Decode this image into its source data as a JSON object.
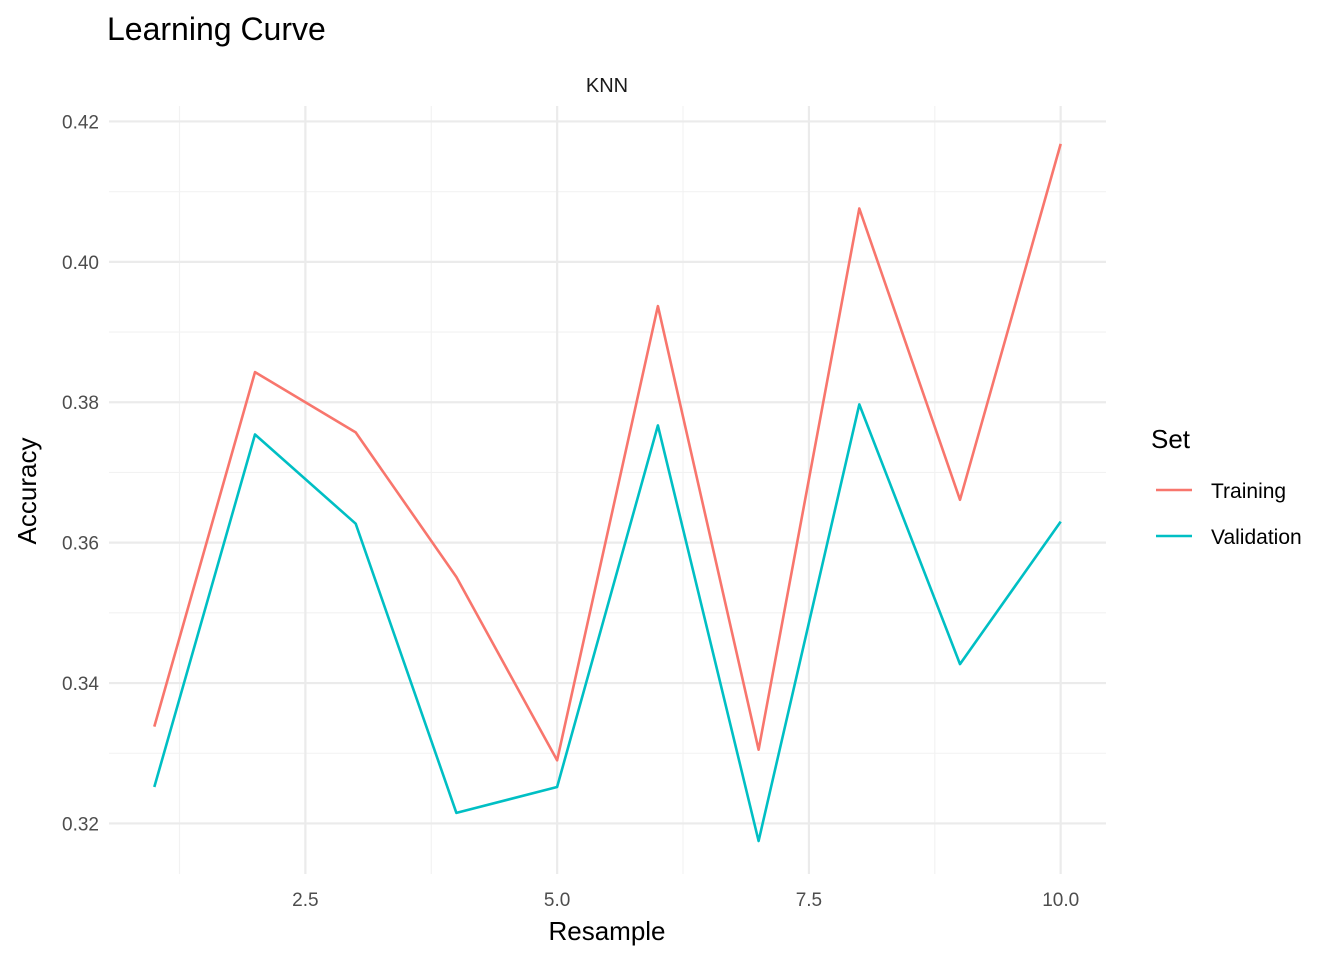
{
  "chart_data": {
    "type": "line",
    "title": "Learning Curve",
    "panel": "KNN",
    "xlabel": "Resample",
    "ylabel": "Accuracy",
    "xlim": [
      0.55,
      10.45
    ],
    "ylim": [
      0.3128,
      0.4222
    ],
    "x_ticks": [
      "2.5",
      "5.0",
      "7.5",
      "10.0"
    ],
    "x_tick_values": [
      2.5,
      5.0,
      7.5,
      10.0
    ],
    "x_minor_values": [
      1.25,
      3.75,
      6.25,
      8.75
    ],
    "y_ticks": [
      "0.32",
      "0.34",
      "0.36",
      "0.38",
      "0.40",
      "0.42"
    ],
    "y_tick_values": [
      0.32,
      0.34,
      0.36,
      0.38,
      0.4,
      0.42
    ],
    "y_minor_values": [
      0.33,
      0.35,
      0.37,
      0.39,
      0.41
    ],
    "x": [
      1,
      2,
      3,
      4,
      5,
      6,
      7,
      8,
      9,
      10
    ],
    "series": [
      {
        "name": "Training",
        "color": "#F8766D",
        "values": [
          0.3338,
          0.3843,
          0.3757,
          0.3551,
          0.329,
          0.3937,
          0.3305,
          0.4076,
          0.3661,
          0.4168
        ]
      },
      {
        "name": "Validation",
        "color": "#00BFC4",
        "values": [
          0.3252,
          0.3754,
          0.3627,
          0.3215,
          0.3252,
          0.3767,
          0.3175,
          0.3797,
          0.3427,
          0.363
        ]
      }
    ],
    "legend": {
      "title": "Set",
      "position": "right"
    },
    "grid": true
  }
}
